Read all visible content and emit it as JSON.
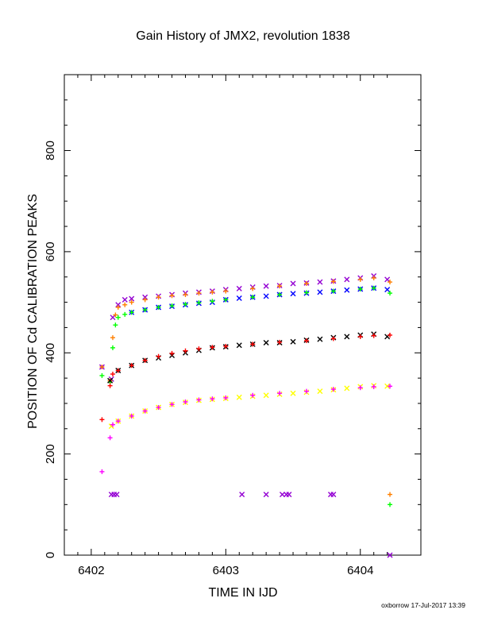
{
  "chart_data": {
    "type": "scatter",
    "title": "Gain History of JMX2, revolution 1838",
    "xlabel": "TIME IN IJD",
    "ylabel": "POSITION OF Cd CALIBRATION PEAKS",
    "xlim": [
      6401.8,
      6404.45
    ],
    "ylim": [
      0,
      950
    ],
    "xticks": [
      6402,
      6403,
      6404
    ],
    "yticks": [
      0,
      200,
      400,
      600,
      800
    ],
    "grid": false,
    "colors": {
      "purple": "#9400d3",
      "orange": "#ff7f00",
      "blue": "#0000ff",
      "green": "#00ff00",
      "black": "#000000",
      "red": "#ff0000",
      "yellow": "#ffff00",
      "magenta": "#ff00ff"
    },
    "series": [
      {
        "color": "purple",
        "marker": "x",
        "x": [
          6402.08,
          6402.15,
          6402.16,
          6402.2,
          6402.25,
          6402.3,
          6402.4,
          6402.5,
          6402.6,
          6402.7,
          6402.8,
          6402.9,
          6403.0,
          6403.1,
          6403.2,
          6403.3,
          6403.4,
          6403.5,
          6403.6,
          6403.7,
          6403.8,
          6403.9,
          6404.0,
          6404.1,
          6404.2
        ],
        "y": [
          372,
          348,
          470,
          495,
          505,
          507,
          510,
          512,
          515,
          518,
          520,
          522,
          525,
          527,
          530,
          532,
          533,
          537,
          538,
          540,
          542,
          545,
          548,
          552,
          545
        ]
      },
      {
        "color": "orange",
        "marker": "+",
        "x": [
          6402.08,
          6402.14,
          6402.16,
          6402.18,
          6402.2,
          6402.25,
          6402.3,
          6402.4,
          6402.5,
          6402.6,
          6402.7,
          6402.8,
          6402.9,
          6403.0,
          6403.2,
          6403.4,
          6403.6,
          6403.8,
          6404.0,
          6404.1,
          6404.22
        ],
        "y": [
          372,
          345,
          430,
          475,
          490,
          495,
          500,
          505,
          510,
          513,
          515,
          518,
          520,
          522,
          527,
          532,
          537,
          541,
          545,
          548,
          540
        ]
      },
      {
        "color": "blue",
        "marker": "x",
        "x": [
          6402.3,
          6402.4,
          6402.5,
          6402.6,
          6402.7,
          6402.8,
          6402.9,
          6403.0,
          6403.1,
          6403.2,
          6403.3,
          6403.4,
          6403.5,
          6403.6,
          6403.7,
          6403.8,
          6403.9,
          6404.0,
          6404.1,
          6404.2
        ],
        "y": [
          480,
          485,
          490,
          492,
          495,
          498,
          500,
          505,
          508,
          510,
          512,
          515,
          517,
          518,
          520,
          522,
          524,
          526,
          528,
          525
        ]
      },
      {
        "color": "green",
        "marker": "+",
        "x": [
          6402.08,
          6402.14,
          6402.16,
          6402.18,
          6402.2,
          6402.25,
          6402.3,
          6402.4,
          6402.5,
          6402.6,
          6402.7,
          6402.8,
          6402.9,
          6403.0,
          6403.2,
          6403.4,
          6403.6,
          6403.8,
          6404.0,
          6404.1,
          6404.22
        ],
        "y": [
          355,
          342,
          410,
          455,
          470,
          476,
          480,
          485,
          490,
          493,
          496,
          499,
          502,
          505,
          510,
          515,
          519,
          522,
          526,
          528,
          518
        ]
      },
      {
        "color": "black",
        "marker": "x",
        "x": [
          6402.14,
          6402.2,
          6402.3,
          6402.4,
          6402.5,
          6402.6,
          6402.7,
          6402.8,
          6402.9,
          6403.0,
          6403.1,
          6403.2,
          6403.3,
          6403.4,
          6403.5,
          6403.6,
          6403.7,
          6403.8,
          6403.9,
          6404.0,
          6404.1,
          6404.2
        ],
        "y": [
          345,
          365,
          375,
          385,
          390,
          395,
          400,
          405,
          410,
          412,
          415,
          417,
          420,
          420,
          422,
          425,
          427,
          430,
          432,
          435,
          437,
          432
        ]
      },
      {
        "color": "red",
        "marker": "+",
        "x": [
          6402.08,
          6402.14,
          6402.16,
          6402.2,
          6402.3,
          6402.4,
          6402.5,
          6402.6,
          6402.7,
          6402.8,
          6402.9,
          6403.0,
          6403.2,
          6403.4,
          6403.6,
          6403.8,
          6404.0,
          6404.1,
          6404.22
        ],
        "y": [
          268,
          335,
          358,
          365,
          375,
          385,
          393,
          399,
          404,
          408,
          411,
          413,
          417,
          421,
          424,
          428,
          432,
          434,
          435
        ]
      },
      {
        "color": "yellow",
        "marker": "x",
        "x": [
          6402.15,
          6402.2,
          6402.3,
          6402.4,
          6402.5,
          6402.6,
          6402.7,
          6402.8,
          6402.9,
          6403.0,
          6403.1,
          6403.2,
          6403.3,
          6403.4,
          6403.5,
          6403.6,
          6403.7,
          6403.8,
          6403.9,
          6404.0,
          6404.1,
          6404.2
        ],
        "y": [
          255,
          265,
          275,
          285,
          292,
          298,
          302,
          306,
          308,
          310,
          312,
          314,
          316,
          318,
          320,
          322,
          324,
          327,
          330,
          333,
          335,
          334
        ]
      },
      {
        "color": "magenta",
        "marker": "+",
        "x": [
          6402.08,
          6402.14,
          6402.16,
          6402.2,
          6402.3,
          6402.4,
          6402.5,
          6402.6,
          6402.7,
          6402.8,
          6402.9,
          6403.0,
          6403.2,
          6403.4,
          6403.6,
          6403.8,
          6404.0,
          6404.1,
          6404.22
        ],
        "y": [
          165,
          232,
          258,
          265,
          275,
          285,
          292,
          298,
          303,
          307,
          309,
          311,
          316,
          320,
          324,
          328,
          331,
          333,
          334
        ]
      },
      {
        "color": "purple",
        "marker": "x",
        "x": [
          6402.15,
          6402.17,
          6402.19,
          6403.12,
          6403.3,
          6403.42,
          6403.45,
          6403.47,
          6403.78,
          6403.8,
          6404.22
        ],
        "y": [
          120,
          120,
          120,
          120,
          120,
          120,
          120,
          120,
          120,
          120,
          0
        ]
      },
      {
        "color": "orange",
        "marker": "+",
        "x": [
          6404.22
        ],
        "y": [
          120
        ]
      },
      {
        "color": "green",
        "marker": "+",
        "x": [
          6404.22
        ],
        "y": [
          100
        ]
      }
    ]
  },
  "footer": "oxborrow 17-Jul-2017 13:39"
}
